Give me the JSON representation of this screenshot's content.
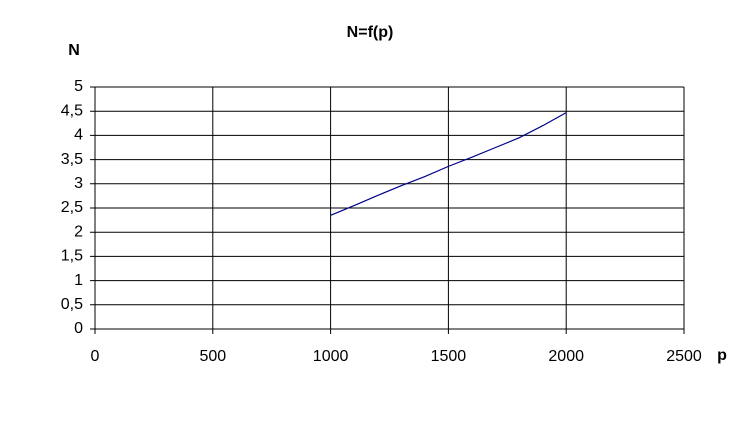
{
  "chart_data": {
    "type": "line",
    "title": "N=f(p)",
    "y_label": "N",
    "x_label": "p",
    "x": [
      1000,
      1100,
      1200,
      1300,
      1400,
      1500,
      1600,
      1700,
      1800,
      1900,
      2000
    ],
    "series": [
      {
        "name": "N",
        "color": "#00008b",
        "values": [
          2.35,
          2.55,
          2.76,
          2.96,
          3.15,
          3.36,
          3.55,
          3.75,
          3.95,
          4.2,
          4.47
        ]
      }
    ],
    "xlim": [
      0,
      2500
    ],
    "xticks": [
      0,
      500,
      1000,
      1500,
      2000,
      2500
    ],
    "ylim": [
      0,
      5
    ],
    "yticks": [
      0,
      {
        "value": 0.5,
        "label": "0,5"
      },
      1,
      {
        "value": 1.5,
        "label": "1,5"
      },
      2,
      {
        "value": 2.5,
        "label": "2,5"
      },
      3,
      {
        "value": 3.5,
        "label": "3,5"
      },
      4,
      {
        "value": 4.5,
        "label": "4,5"
      },
      5
    ],
    "grid": true
  }
}
